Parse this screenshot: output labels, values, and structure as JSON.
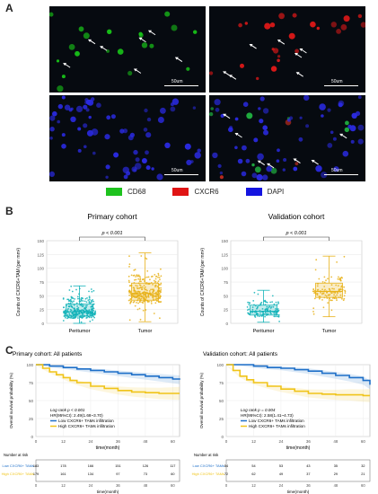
{
  "panels": {
    "a": "A",
    "b": "B",
    "c": "C"
  },
  "scale_label": "50um",
  "channels": [
    {
      "name": "CD68",
      "color": "#1ec21e"
    },
    {
      "name": "CXCR6",
      "color": "#e01414"
    },
    {
      "name": "DAPI",
      "color": "#1414e0"
    }
  ],
  "chart_data": [
    {
      "type": "box",
      "title": "Primary cohort",
      "ylabel": "Counts of CXCR6+TAM (per mm²)",
      "categories": [
        "Peritumor",
        "Tumor"
      ],
      "ylim": [
        0,
        150
      ],
      "yticks": [
        0,
        25,
        50,
        75,
        100,
        125,
        150
      ],
      "series": [
        {
          "category": "Peritumor",
          "color": "#13b3b8",
          "min": 0,
          "q1": 13,
          "median": 21,
          "q3": 35,
          "max": 68,
          "n": 300
        },
        {
          "category": "Tumor",
          "color": "#e8b21a",
          "min": 3,
          "q1": 42,
          "median": 54,
          "q3": 73,
          "max": 128,
          "n": 300
        }
      ],
      "annotation": "p < 0.001"
    },
    {
      "type": "box",
      "title": "Validation cohort",
      "ylabel": "Counts of CXCR6+TAM (per mm²)",
      "categories": [
        "Peritumor",
        "Tumor"
      ],
      "ylim": [
        0,
        150
      ],
      "yticks": [
        0,
        25,
        50,
        75,
        100,
        125,
        150
      ],
      "series": [
        {
          "category": "Peritumor",
          "color": "#13b3b8",
          "min": 2,
          "q1": 15,
          "median": 22,
          "q3": 33,
          "max": 60,
          "n": 120
        },
        {
          "category": "Tumor",
          "color": "#e8b21a",
          "min": 12,
          "q1": 47,
          "median": 58,
          "q3": 73,
          "max": 122,
          "n": 120
        }
      ],
      "annotation": "p < 0.001"
    },
    {
      "type": "line",
      "title": "Primary cohort: All patients",
      "xlabel": "time(month)",
      "ylabel": "Overall survival probability (%)",
      "xlim": [
        0,
        63
      ],
      "ylim": [
        0,
        100
      ],
      "xticks": [
        0,
        12,
        24,
        36,
        48,
        60
      ],
      "yticks": [
        0,
        25,
        50,
        75,
        100
      ],
      "series": [
        {
          "name": "Low CXCR6+ TAMs infiltration",
          "color": "#1e6fc8",
          "x": [
            0,
            6,
            12,
            18,
            24,
            30,
            36,
            42,
            48,
            54,
            60,
            63
          ],
          "y": [
            100,
            98,
            96,
            94,
            92,
            90,
            88,
            86,
            84,
            82,
            80,
            79
          ]
        },
        {
          "name": "High CXCR6+ TAMs infiltration",
          "color": "#f0c419",
          "x": [
            0,
            3,
            6,
            9,
            12,
            15,
            18,
            24,
            30,
            36,
            42,
            48,
            54,
            60,
            63
          ],
          "y": [
            100,
            95,
            90,
            86,
            82,
            78,
            75,
            70,
            67,
            64,
            62,
            61,
            60,
            60,
            60
          ]
        }
      ],
      "text": {
        "logrank": "Log rank p < 0.001",
        "hr": "HR(95%CI): 2.49(1.68~3.70)"
      },
      "risk_table": {
        "title": "Number at risk",
        "times": [
          0,
          12,
          24,
          36,
          48,
          60
        ],
        "xlabel": "time(month)",
        "rows": [
          {
            "label": "Low CXCR6+ TAMs",
            "color": "#1e6fc8",
            "values": [
              "183",
              "178",
              "166",
              "151",
              "126",
              "117"
            ]
          },
          {
            "label": "High CXCR6+ TAMs",
            "color": "#f0c419",
            "values": [
              "179",
              "161",
              "134",
              "97",
              "73",
              "60"
            ]
          }
        ]
      }
    },
    {
      "type": "line",
      "title": "Validation cohort: All patients",
      "xlabel": "time(month)",
      "ylabel": "Overall survival probability (%)",
      "xlim": [
        0,
        63
      ],
      "ylim": [
        0,
        100
      ],
      "xticks": [
        0,
        12,
        24,
        36,
        48,
        60
      ],
      "yticks": [
        0,
        25,
        50,
        75,
        100
      ],
      "series": [
        {
          "name": "Low CXCR6+ TAMs infiltration",
          "color": "#1e6fc8",
          "x": [
            0,
            6,
            12,
            18,
            24,
            30,
            36,
            42,
            48,
            54,
            60,
            63
          ],
          "y": [
            100,
            100,
            98,
            96,
            95,
            93,
            91,
            88,
            85,
            82,
            78,
            72
          ]
        },
        {
          "name": "High CXCR6+ TAMs infiltration",
          "color": "#f0c419",
          "x": [
            0,
            3,
            6,
            9,
            12,
            18,
            24,
            30,
            36,
            42,
            48,
            54,
            60,
            63
          ],
          "y": [
            100,
            92,
            84,
            79,
            75,
            70,
            66,
            63,
            60,
            59,
            58,
            58,
            57,
            57
          ]
        }
      ],
      "text": {
        "logrank": "Log rank p = 0.004",
        "hr": "HR(95%CI): 2.58(1.41~4.73)"
      },
      "risk_table": {
        "title": "Number at risk",
        "times": [
          0,
          12,
          24,
          36,
          48,
          60
        ],
        "xlabel": "time(month)",
        "rows": [
          {
            "label": "Low CXCR6+ TAMs",
            "color": "#1e6fc8",
            "values": [
              "54",
              "54",
              "53",
              "43",
              "35",
              "32"
            ]
          },
          {
            "label": "High CXCR6+ TAMs",
            "color": "#f0c419",
            "values": [
              "72",
              "62",
              "49",
              "37",
              "29",
              "21"
            ]
          }
        ]
      }
    }
  ]
}
